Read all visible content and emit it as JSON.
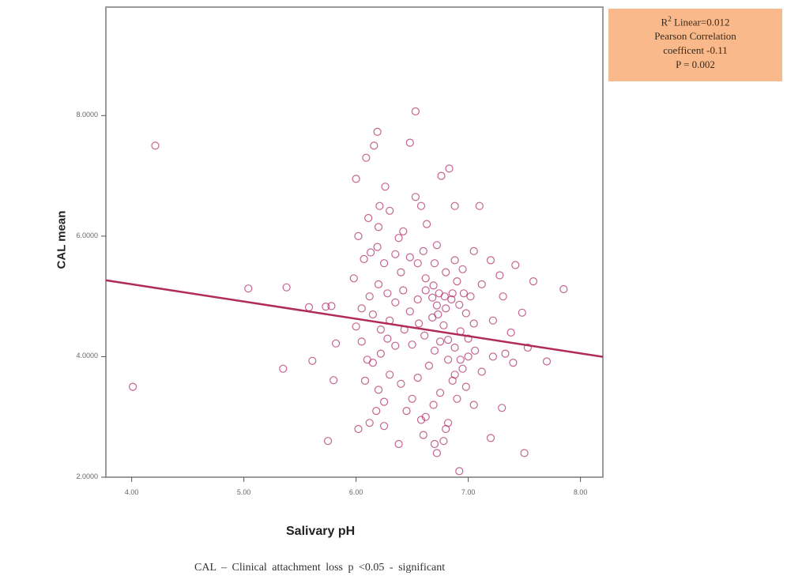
{
  "chart_data": {
    "type": "scatter",
    "title": "",
    "xlabel": "Salivary pH",
    "ylabel": "CAL mean",
    "xlim": [
      3.77,
      8.2
    ],
    "ylim": [
      2.0,
      9.8
    ],
    "x_ticks": [
      "4.00",
      "5.00",
      "6.00",
      "7.00",
      "8.00"
    ],
    "x_tick_values": [
      4,
      5,
      6,
      7,
      8
    ],
    "y_ticks": [
      "2.0000",
      "4.0000",
      "6.0000",
      "8.0000"
    ],
    "y_tick_values": [
      2,
      4,
      6,
      8
    ],
    "grid": false,
    "marker": "open-circle",
    "marker_color": "#b0306a",
    "fit_line": {
      "type": "linear",
      "intercept": 6.35,
      "slope": -0.287,
      "color": "#b02a5a"
    },
    "points": [
      [
        4.01,
        3.5
      ],
      [
        4.21,
        7.5
      ],
      [
        5.04,
        5.13
      ],
      [
        5.38,
        5.15
      ],
      [
        5.35,
        3.8
      ],
      [
        5.58,
        4.82
      ],
      [
        5.61,
        3.93
      ],
      [
        5.75,
        2.6
      ],
      [
        5.78,
        4.84
      ],
      [
        5.73,
        4.83
      ],
      [
        5.8,
        3.61
      ],
      [
        5.82,
        4.22
      ],
      [
        5.98,
        5.3
      ],
      [
        6.0,
        6.95
      ],
      [
        6.02,
        6.0
      ],
      [
        6.09,
        7.3
      ],
      [
        6.16,
        7.5
      ],
      [
        6.19,
        7.73
      ],
      [
        6.11,
        6.3
      ],
      [
        6.21,
        6.5
      ],
      [
        6.26,
        6.82
      ],
      [
        6.2,
        6.15
      ],
      [
        6.3,
        6.42
      ],
      [
        6.07,
        5.62
      ],
      [
        6.13,
        5.73
      ],
      [
        6.19,
        5.82
      ],
      [
        6.25,
        5.55
      ],
      [
        6.35,
        5.7
      ],
      [
        6.38,
        5.97
      ],
      [
        6.42,
        6.08
      ],
      [
        6.48,
        7.55
      ],
      [
        6.53,
        8.07
      ],
      [
        6.53,
        6.65
      ],
      [
        6.58,
        6.5
      ],
      [
        6.63,
        6.2
      ],
      [
        6.72,
        5.85
      ],
      [
        6.76,
        7.0
      ],
      [
        6.83,
        7.12
      ],
      [
        6.88,
        6.5
      ],
      [
        7.1,
        6.5
      ],
      [
        6.55,
        5.55
      ],
      [
        6.62,
        5.3
      ],
      [
        6.69,
        5.18
      ],
      [
        6.74,
        5.05
      ],
      [
        6.79,
        5.0
      ],
      [
        6.85,
        4.95
      ],
      [
        6.92,
        4.86
      ],
      [
        6.98,
        4.72
      ],
      [
        7.05,
        4.55
      ],
      [
        7.12,
        5.2
      ],
      [
        7.2,
        5.6
      ],
      [
        7.22,
        4.6
      ],
      [
        7.28,
        5.35
      ],
      [
        7.31,
        5.0
      ],
      [
        7.38,
        4.4
      ],
      [
        7.42,
        5.52
      ],
      [
        7.48,
        4.73
      ],
      [
        7.58,
        5.25
      ],
      [
        7.4,
        3.9
      ],
      [
        7.3,
        3.15
      ],
      [
        7.5,
        2.4
      ],
      [
        7.2,
        2.65
      ],
      [
        7.22,
        4.0
      ],
      [
        7.33,
        4.05
      ],
      [
        7.53,
        4.15
      ],
      [
        7.7,
        3.92
      ],
      [
        7.85,
        5.12
      ],
      [
        6.92,
        2.1
      ],
      [
        6.72,
        2.4
      ],
      [
        6.78,
        2.6
      ],
      [
        6.8,
        2.8
      ],
      [
        6.58,
        2.95
      ],
      [
        6.45,
        3.1
      ],
      [
        6.38,
        2.55
      ],
      [
        6.25,
        2.85
      ],
      [
        6.18,
        3.1
      ],
      [
        6.12,
        2.9
      ],
      [
        6.02,
        2.8
      ],
      [
        6.08,
        3.6
      ],
      [
        6.15,
        3.9
      ],
      [
        6.22,
        4.05
      ],
      [
        6.28,
        4.3
      ],
      [
        6.35,
        4.18
      ],
      [
        6.43,
        4.45
      ],
      [
        6.5,
        4.2
      ],
      [
        6.56,
        4.55
      ],
      [
        6.61,
        4.35
      ],
      [
        6.68,
        4.65
      ],
      [
        6.72,
        4.85
      ],
      [
        6.78,
        4.52
      ],
      [
        6.82,
        4.28
      ],
      [
        6.88,
        4.15
      ],
      [
        6.93,
        4.42
      ],
      [
        7.0,
        4.3
      ],
      [
        7.06,
        4.1
      ],
      [
        6.95,
        3.8
      ],
      [
        6.86,
        3.6
      ],
      [
        6.75,
        3.4
      ],
      [
        6.69,
        3.2
      ],
      [
        6.62,
        3.0
      ],
      [
        6.9,
        3.3
      ],
      [
        6.98,
        3.5
      ],
      [
        7.05,
        3.2
      ],
      [
        7.12,
        3.75
      ],
      [
        6.4,
        3.55
      ],
      [
        6.3,
        3.7
      ],
      [
        6.2,
        3.45
      ],
      [
        6.1,
        3.95
      ],
      [
        6.05,
        4.25
      ],
      [
        6.0,
        4.5
      ],
      [
        6.05,
        4.8
      ],
      [
        6.12,
        5.0
      ],
      [
        6.2,
        5.2
      ],
      [
        6.28,
        5.05
      ],
      [
        6.35,
        4.9
      ],
      [
        6.42,
        5.1
      ],
      [
        6.48,
        4.75
      ],
      [
        6.55,
        4.95
      ],
      [
        6.62,
        5.1
      ],
      [
        6.68,
        4.98
      ],
      [
        6.73,
        4.7
      ],
      [
        6.8,
        4.8
      ],
      [
        6.86,
        5.05
      ],
      [
        6.9,
        5.25
      ],
      [
        6.96,
        5.05
      ],
      [
        7.02,
        5.0
      ],
      [
        6.4,
        5.4
      ],
      [
        6.48,
        5.65
      ],
      [
        6.6,
        5.75
      ],
      [
        6.7,
        5.55
      ],
      [
        6.8,
        5.4
      ],
      [
        6.88,
        5.6
      ],
      [
        6.95,
        5.45
      ],
      [
        7.05,
        5.75
      ],
      [
        6.3,
        4.6
      ],
      [
        6.22,
        4.45
      ],
      [
        6.15,
        4.7
      ],
      [
        6.25,
        3.25
      ],
      [
        6.5,
        3.3
      ],
      [
        6.55,
        3.65
      ],
      [
        6.65,
        3.85
      ],
      [
        6.7,
        4.1
      ],
      [
        6.75,
        4.25
      ],
      [
        6.82,
        3.95
      ],
      [
        6.88,
        3.7
      ],
      [
        6.93,
        3.95
      ],
      [
        7.0,
        4.0
      ],
      [
        6.6,
        2.7
      ],
      [
        6.7,
        2.55
      ],
      [
        6.82,
        2.9
      ]
    ]
  },
  "stats_box": {
    "r2_prefix": "R",
    "r2_sup": "2",
    "r2_rest": " Linear=0.012",
    "line2": "Pearson Correlation",
    "line3": "coefficent -0.11",
    "line4": "P = 0.002"
  },
  "caption": "CAL – Clinical  attachment  loss     p <0.05 - significant",
  "colors": {
    "marker": "#b0306a",
    "fit_line": "#b02a5a",
    "stats_box_bg": "#f9b98a",
    "axis": "#9a9a9a"
  }
}
